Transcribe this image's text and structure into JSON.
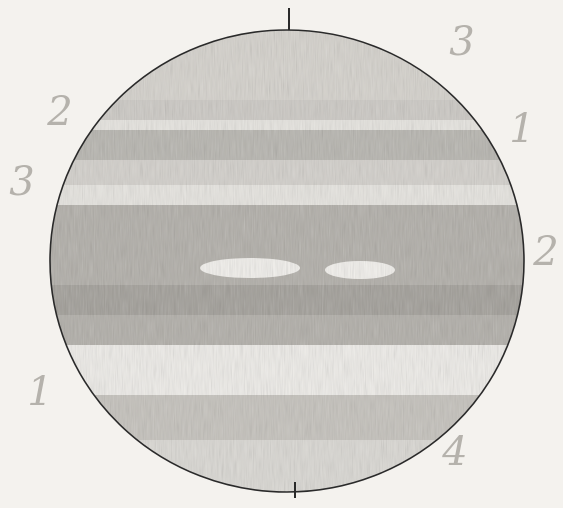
{
  "labels": [
    "3",
    "2",
    "1",
    "3",
    "2",
    "1",
    "4"
  ]
}
